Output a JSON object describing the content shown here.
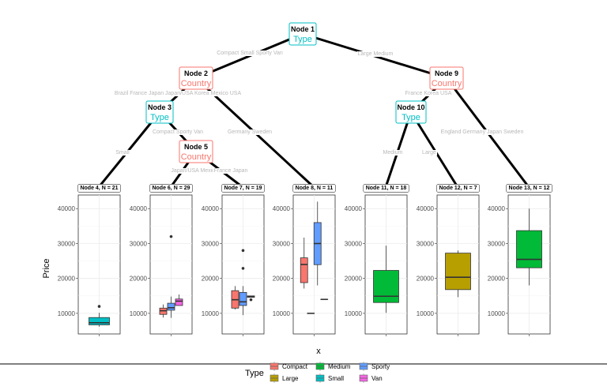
{
  "chart_data": {
    "type": "tree-boxplot",
    "xlabel": "x",
    "ylabel": "Price",
    "ylim": [
      4100,
      43900
    ],
    "yticks": [
      10000,
      20000,
      30000,
      40000
    ],
    "grid": true,
    "legend": {
      "title": "Type",
      "placement": "bottom",
      "entries": [
        "Compact",
        "Large",
        "Medium",
        "Small",
        "Sporty",
        "Van"
      ]
    },
    "colors": {
      "Compact": "#F8766D",
      "Large": "#B79F00",
      "Medium": "#00BA38",
      "Small": "#00BFC4",
      "Sporty": "#619CFF",
      "Van": "#F564E3",
      "split_type": "#00BFC4",
      "split_country": "#F8766D"
    },
    "inner_nodes": [
      {
        "id": 1,
        "label": "Node 1",
        "split": "Type"
      },
      {
        "id": 2,
        "label": "Node 2",
        "split": "Country"
      },
      {
        "id": 3,
        "label": "Node 3",
        "split": "Type"
      },
      {
        "id": 5,
        "label": "Node 5",
        "split": "Country"
      },
      {
        "id": 9,
        "label": "Node 9",
        "split": "Country"
      },
      {
        "id": 10,
        "label": "Node 10",
        "split": "Type"
      }
    ],
    "edges": [
      {
        "from": 1,
        "to": 2,
        "label": "Compact Small Sporty Van"
      },
      {
        "from": 1,
        "to": 9,
        "label": "Large Medium"
      },
      {
        "from": 2,
        "to": 3,
        "label": "Brazil France Japan Japan/USA Korea Mexico USA"
      },
      {
        "from": 2,
        "to": 8,
        "label": "Germany Sweden"
      },
      {
        "from": 3,
        "to": 4,
        "label": "Small"
      },
      {
        "from": 3,
        "to": 5,
        "label": "Compact Sporty Van"
      },
      {
        "from": 5,
        "to": 6,
        "label": "Japan/USA Mexico"
      },
      {
        "from": 5,
        "to": 7,
        "label": "France Japan"
      },
      {
        "from": 9,
        "to": 10,
        "label": "France Korea USA"
      },
      {
        "from": 9,
        "to": 13,
        "label": "England Germany Japan Sweden"
      },
      {
        "from": 10,
        "to": 11,
        "label": "Medium"
      },
      {
        "from": 10,
        "to": 12,
        "label": "Large"
      }
    ],
    "terminal_nodes": [
      {
        "id": 4,
        "label": "Node 4, N = 21",
        "boxes": [
          {
            "type": "Small",
            "min": 6200,
            "q1": 6700,
            "median": 7300,
            "q3": 8800,
            "max": 10150,
            "outliers": [
              12000
            ]
          }
        ]
      },
      {
        "id": 6,
        "label": "Node 6, N = 29",
        "boxes": [
          {
            "type": "Compact",
            "min": 8800,
            "q1": 9700,
            "median": 10750,
            "q3": 11500,
            "max": 12550,
            "outliers": []
          },
          {
            "type": "Sporty",
            "min": 8700,
            "q1": 10900,
            "median": 11600,
            "q3": 12900,
            "max": 14800,
            "outliers": [
              32000
            ]
          },
          {
            "type": "Van",
            "min": 12250,
            "q1": 12250,
            "median": 13500,
            "q3": 14100,
            "max": 15400,
            "outliers": []
          }
        ]
      },
      {
        "id": 7,
        "label": "Node 7, N = 19",
        "boxes": [
          {
            "type": "Compact",
            "min": 11100,
            "q1": 11500,
            "median": 13900,
            "q3": 16500,
            "max": 17800,
            "outliers": []
          },
          {
            "type": "Sporty",
            "min": 9500,
            "q1": 12250,
            "median": 13300,
            "q3": 16000,
            "max": 17800,
            "outliers": [
              22900,
              28000
            ]
          },
          {
            "type": "Van",
            "min": 14600,
            "q1": 14600,
            "median": 14800,
            "q3": 15000,
            "max": 15000,
            "outliers": [
              13900
            ]
          }
        ]
      },
      {
        "id": 8,
        "label": "Node 8, N = 11",
        "boxes": [
          {
            "type": "Compact",
            "min": 17100,
            "q1": 18800,
            "median": 24000,
            "q3": 25900,
            "max": 31700,
            "outliers": []
          },
          {
            "type": "Small",
            "min": 10000,
            "q1": 10000,
            "median": 10000,
            "q3": 10000,
            "max": 10000,
            "outliers": []
          },
          {
            "type": "Sporty",
            "min": 18000,
            "q1": 23950,
            "median": 30000,
            "q3": 36000,
            "max": 42000,
            "outliers": []
          },
          {
            "type": "Van",
            "min": 14000,
            "q1": 14000,
            "median": 14000,
            "q3": 14000,
            "max": 14000,
            "outliers": []
          }
        ]
      },
      {
        "id": 11,
        "label": "Node 11, N = 18",
        "boxes": [
          {
            "type": "Medium",
            "min": 10150,
            "q1": 13100,
            "median": 14900,
            "q3": 22300,
            "max": 29400,
            "outliers": []
          }
        ]
      },
      {
        "id": 12,
        "label": "Node 12, N = 7",
        "boxes": [
          {
            "type": "Large",
            "min": 14650,
            "q1": 16800,
            "median": 20350,
            "q3": 27250,
            "max": 28000,
            "outliers": []
          }
        ]
      },
      {
        "id": 13,
        "label": "Node 13, N = 12",
        "boxes": [
          {
            "type": "Medium",
            "min": 18000,
            "q1": 23050,
            "median": 25450,
            "q3": 33700,
            "max": 40000,
            "outliers": []
          }
        ]
      }
    ]
  }
}
